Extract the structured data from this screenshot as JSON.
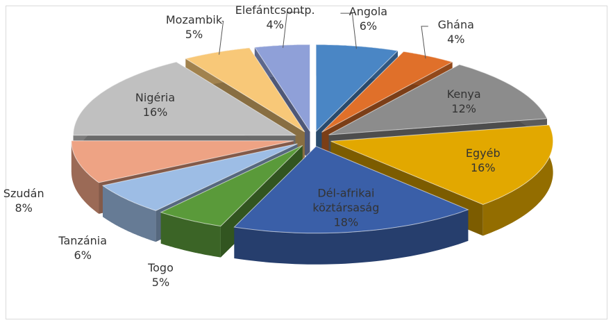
{
  "chart_data": {
    "type": "pie3d",
    "categories": [
      "Angola",
      "Ghána",
      "Kenya",
      "Egyéb",
      "Dél-afrikai köztársaság",
      "Togo",
      "Tanzánia",
      "Szudán",
      "Nigéria",
      "Mozambik",
      "Elefántcsontp."
    ],
    "values": [
      6,
      4,
      12,
      16,
      18,
      5,
      6,
      8,
      16,
      5,
      4
    ],
    "value_labels": [
      "6%",
      "4%",
      "12%",
      "16%",
      "18%",
      "5%",
      "6%",
      "8%",
      "16%",
      "5%",
      "4%"
    ],
    "colors": [
      "#4a86c5",
      "#e0702a",
      "#8c8c8c",
      "#e2a800",
      "#3a5fa8",
      "#5a9a3a",
      "#9dbde5",
      "#eea384",
      "#c0c0c0",
      "#f8c878",
      "#8fa0d8"
    ]
  }
}
